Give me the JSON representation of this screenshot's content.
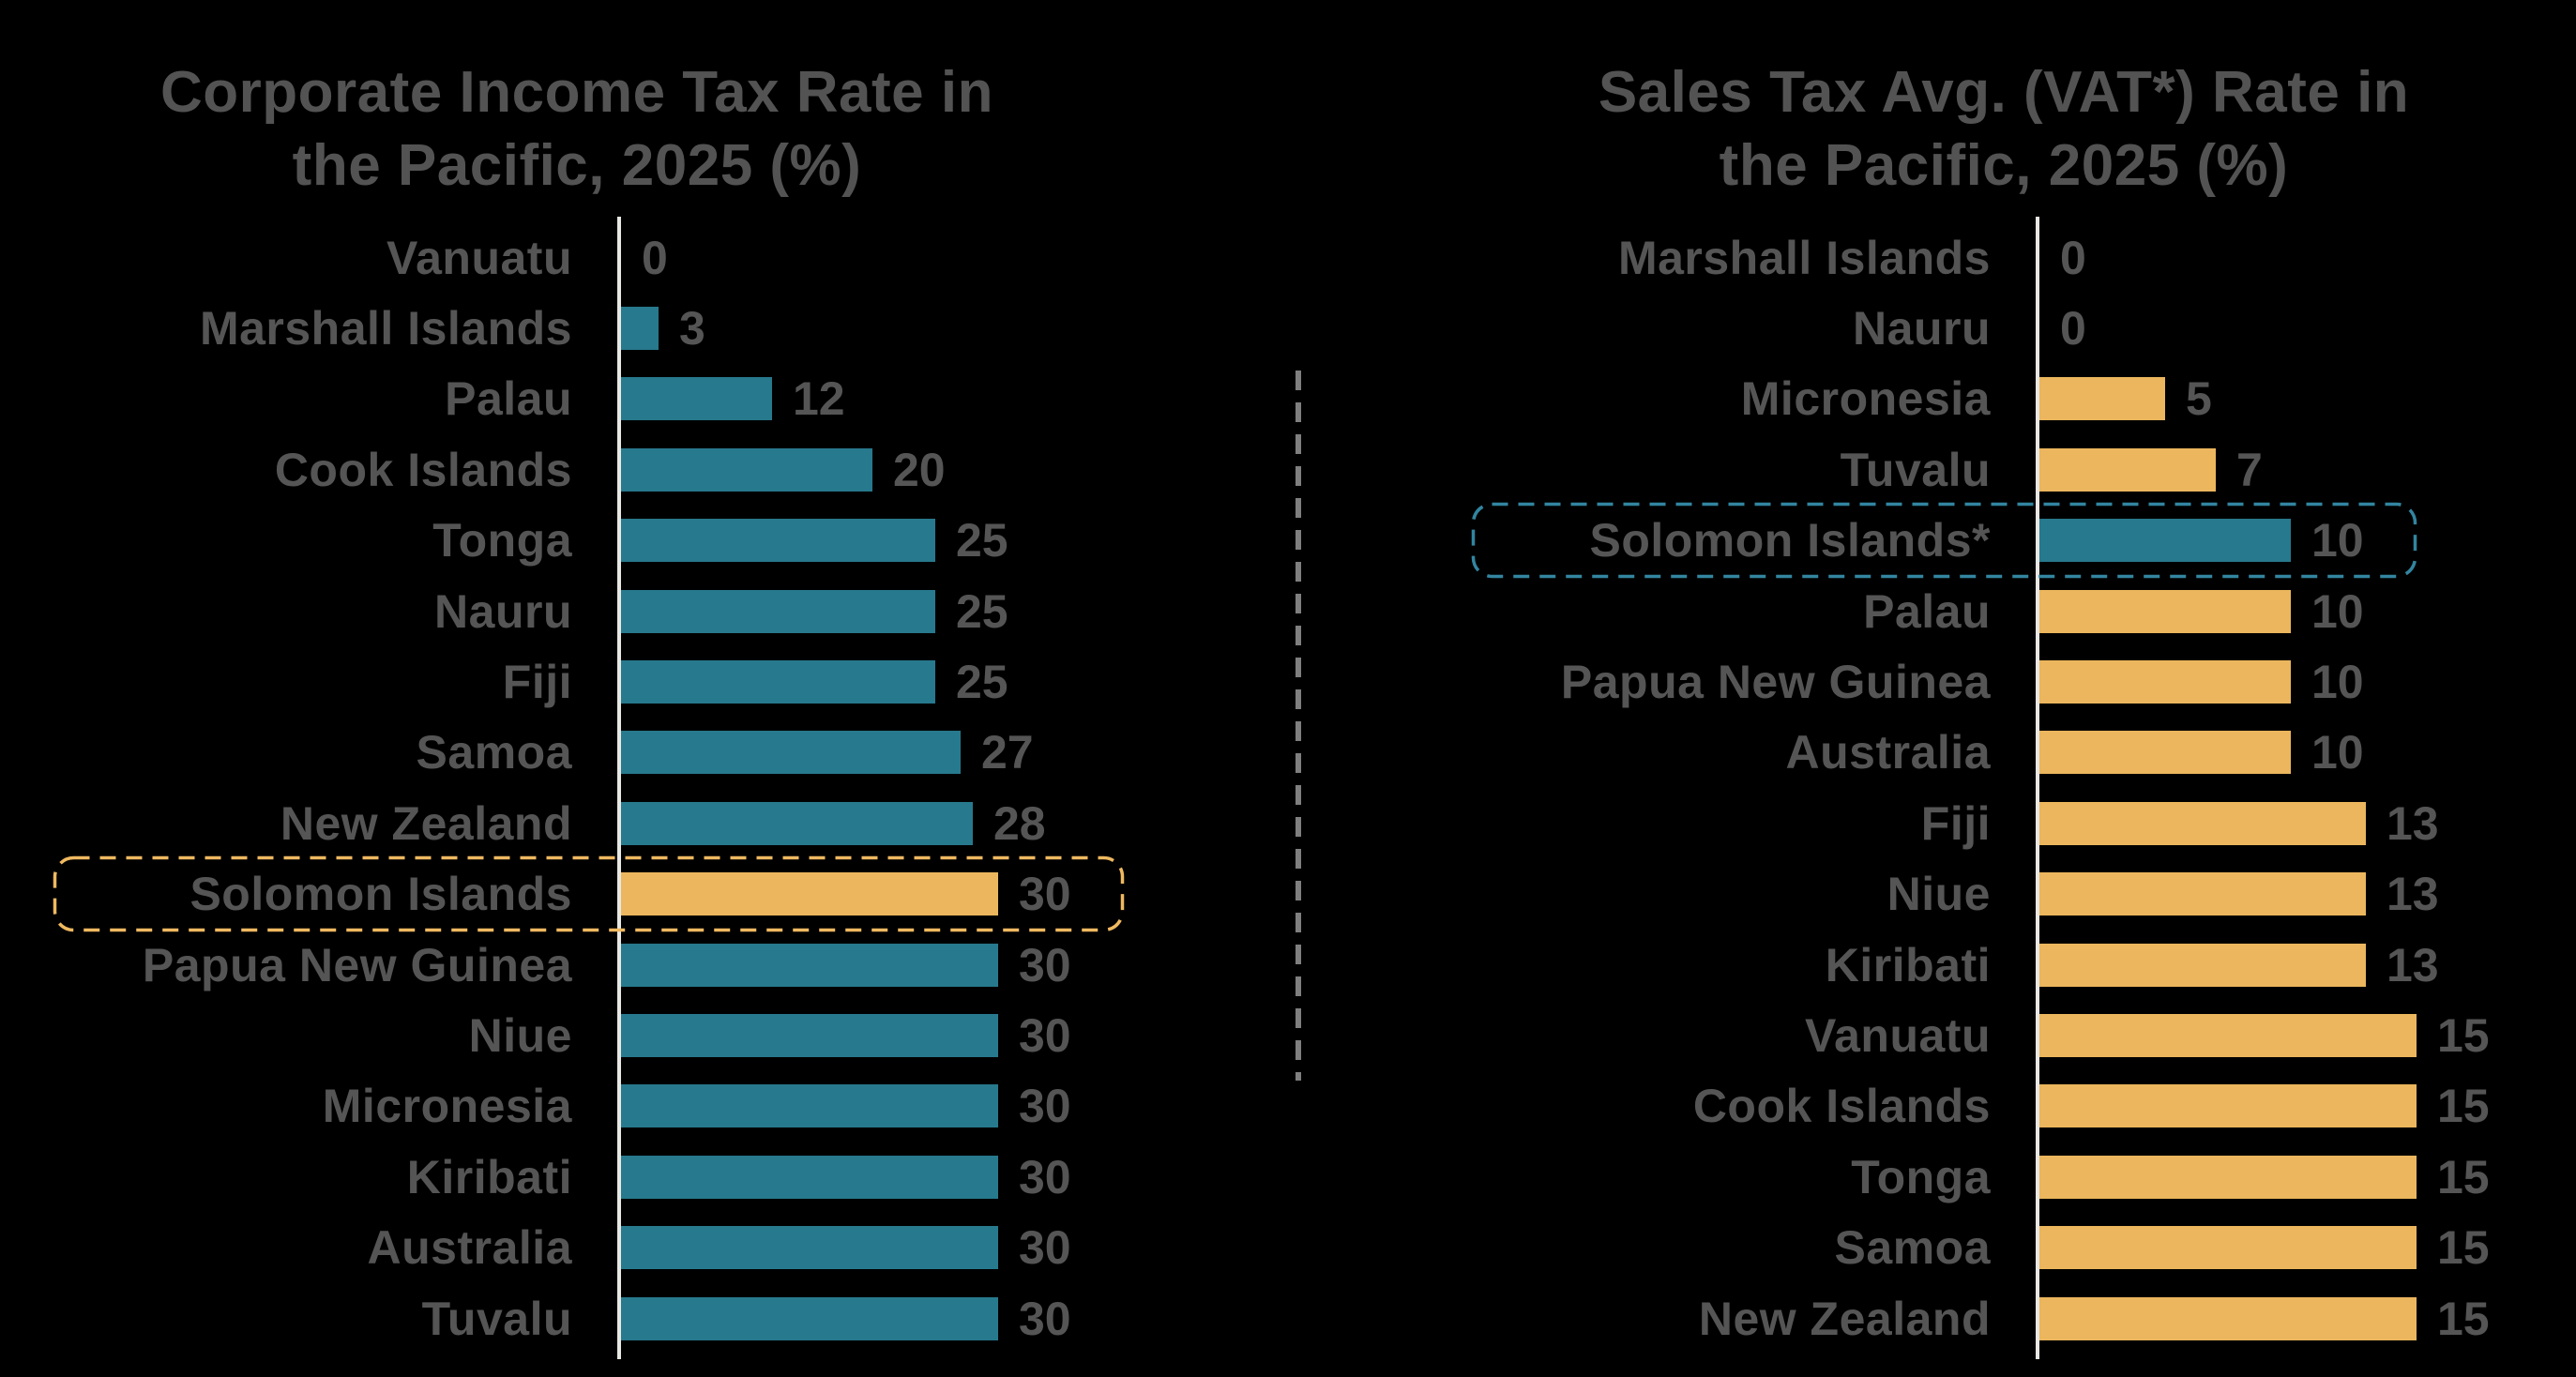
{
  "background_color": "#000000",
  "text_color": "#555555",
  "axis_color": "#E9E7E3",
  "divider": {
    "style": "dashed-vertical-line",
    "color": "#7F7F7F"
  },
  "chart_data": [
    {
      "type": "bar",
      "orientation": "horizontal",
      "title": "Corporate Income Tax Rate in the Pacific, 2025 (%)",
      "title_line1": "Corporate Income Tax Rate in",
      "title_line2": "the Pacific, 2025 (%)",
      "categories": [
        "Vanuatu",
        "Marshall Islands",
        "Palau",
        "Cook Islands",
        "Tonga",
        "Nauru",
        "Fiji",
        "Samoa",
        "New Zealand",
        "Solomon Islands",
        "Papua New Guinea",
        "Niue",
        "Micronesia",
        "Kiribati",
        "Australia",
        "Tuvalu"
      ],
      "values": [
        0,
        3,
        12,
        20,
        25,
        25,
        25,
        27,
        28,
        30,
        30,
        30,
        30,
        30,
        30,
        30
      ],
      "xlim": [
        0,
        30
      ],
      "grid": false,
      "legend": false,
      "value_labels_shown": true,
      "bar_color": "#27798D",
      "highlight": {
        "category": "Solomon Islands",
        "index": 9,
        "bar_color": "#EBB65D",
        "box_color": "#EFB960",
        "box_style": "dashed-rounded-rect"
      }
    },
    {
      "type": "bar",
      "orientation": "horizontal",
      "title": "Sales Tax Avg. (VAT*) Rate in the Pacific, 2025 (%)",
      "title_line1": "Sales Tax Avg. (VAT*) Rate in",
      "title_line2": "the Pacific, 2025 (%)",
      "categories": [
        "Marshall Islands",
        "Nauru",
        "Micronesia",
        "Tuvalu",
        "Solomon Islands*",
        "Palau",
        "Papua New Guinea",
        "Australia",
        "Fiji",
        "Niue",
        "Kiribati",
        "Vanuatu",
        "Cook Islands",
        "Tonga",
        "Samoa",
        "New Zealand"
      ],
      "values": [
        0,
        0,
        5,
        7,
        10,
        10,
        10,
        10,
        13,
        13,
        13,
        15,
        15,
        15,
        15,
        15
      ],
      "xlim": [
        0,
        15
      ],
      "grid": false,
      "legend": false,
      "value_labels_shown": true,
      "bar_color": "#EBB65D",
      "highlight": {
        "category": "Solomon Islands*",
        "index": 4,
        "bar_color": "#27798D",
        "box_color": "#3285A0",
        "box_style": "dashed-rounded-rect"
      }
    }
  ]
}
